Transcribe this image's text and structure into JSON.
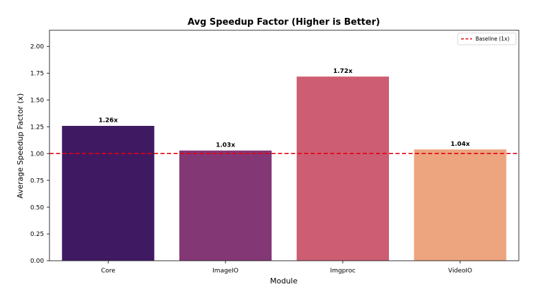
{
  "chart_data": {
    "type": "bar",
    "title": "Avg Speedup Factor (Higher is Better)",
    "xlabel": "Module",
    "ylabel": "Average Speedup Factor (x)",
    "categories": [
      "Core",
      "ImageIO",
      "Imgproc",
      "VideoIO"
    ],
    "values": [
      1.26,
      1.03,
      1.72,
      1.04
    ],
    "data_labels": [
      "1.26x",
      "1.03x",
      "1.72x",
      "1.04x"
    ],
    "colors": [
      "#3f1a63",
      "#843775",
      "#cd5d72",
      "#eca57f"
    ],
    "ylim": [
      0,
      2.15
    ],
    "yticks": [
      0,
      0.25,
      0.5,
      0.75,
      1.0,
      1.25,
      1.5,
      1.75,
      2.0
    ],
    "ytick_labels": [
      "0.00",
      "0.25",
      "0.50",
      "0.75",
      "1.00",
      "1.25",
      "1.50",
      "1.75",
      "2.00"
    ],
    "baseline": {
      "value": 1.0,
      "label": "Baseline (1x)",
      "color": "#e3000f"
    },
    "legend_position": "top-right",
    "grid": false
  }
}
